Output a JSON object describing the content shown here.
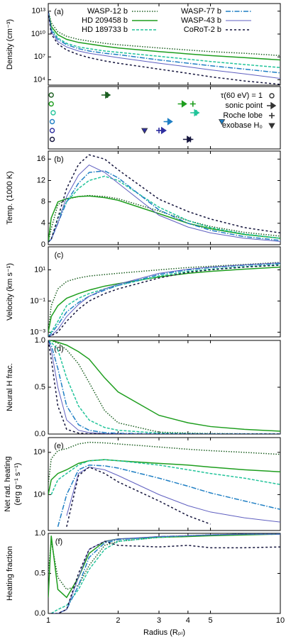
{
  "chart_data": [
    {
      "type": "line",
      "panel_label": "(a)",
      "y_label": "Density (cm⁻³)",
      "ylog": true,
      "xlim": [
        1,
        10
      ],
      "xticks": [
        1,
        2,
        3,
        4,
        5,
        10
      ],
      "ylim": [
        2000,
        100000000000000
      ],
      "yticks": [
        {
          "value": 10000,
          "label": "10⁴"
        },
        {
          "value": 10000000,
          "label": "10⁷"
        },
        {
          "value": 10000000000,
          "label": "10¹⁰"
        },
        {
          "value": 10000000000000,
          "label": "10¹³"
        }
      ],
      "x": [
        1,
        1.03,
        1.1,
        1.2,
        1.35,
        1.5,
        1.75,
        2,
        3,
        4,
        5,
        7,
        10
      ],
      "series": [
        {
          "name": "WASP-12 b",
          "color": "#1b5e20",
          "dash": "1.5,2",
          "values": [
            10000000000000,
            300000000000,
            20000000000,
            5000000000,
            2000000000,
            1200000000,
            600000000,
            400000000,
            150000000,
            80000000,
            50000000,
            30000000,
            15000000
          ]
        },
        {
          "name": "HD 209458 b",
          "color": "#1e9e1e",
          "dash": "",
          "values": [
            10000000000000,
            100000000000,
            8000000000,
            2000000000,
            800000000,
            500000000,
            250000000,
            150000000,
            50000000,
            25000000,
            15000000,
            8000000,
            4000000
          ]
        },
        {
          "name": "HD 189733 b",
          "color": "#22c49a",
          "dash": "4,2",
          "values": [
            10000000000000,
            50000000000,
            3000000000,
            600000000,
            200000000,
            120000000,
            60000000,
            40000000,
            12000000,
            5000000,
            2500000,
            1000000,
            400000
          ]
        },
        {
          "name": "WASP-77 b",
          "color": "#1f7fc4",
          "dash": "7,2,1.5,2",
          "values": [
            10000000000000,
            30000000000,
            2000000000,
            400000000,
            120000000,
            60000000,
            30000000,
            20000000,
            4000000,
            1500000,
            700000,
            250000,
            80000
          ]
        },
        {
          "name": "WASP-43 b",
          "color": "#5f5fc0",
          "dash": "",
          "values": [
            10000000000000,
            20000000000,
            1000000000,
            200000000,
            60000000,
            30000000,
            15000000,
            8000000,
            1500000,
            500000,
            200000,
            60000,
            15000
          ]
        },
        {
          "name": "CoRoT-2 b",
          "color": "#14143c",
          "dash": "3,3",
          "values": [
            10000000000000,
            10000000000,
            500000000,
            80000000,
            20000000,
            8000000,
            3000000,
            1500000,
            250000,
            70000,
            25000,
            7000,
            2500
          ]
        }
      ]
    },
    {
      "type": "marker",
      "xlim": [
        1,
        10
      ],
      "xticks": [
        1,
        2,
        3,
        4,
        5,
        10
      ],
      "legend_labels": [
        "τ(60 eV) = 1",
        "sonic point",
        "Roche lobe",
        "exobase H₀"
      ],
      "series": [
        {
          "color": "#1b5e20",
          "x": [
            1.03,
            1.78,
            1.8,
            null
          ]
        },
        {
          "color": "#1e9e1e",
          "x": [
            1.03,
            3.8,
            4.2,
            null
          ]
        },
        {
          "color": "#22c49a",
          "x": [
            1.05,
            4.3,
            4.35,
            null
          ]
        },
        {
          "color": "#1f7fc4",
          "x": [
            1.04,
            3.3,
            3.3,
            5.6
          ]
        },
        {
          "color": "#3030a0",
          "x": [
            1.04,
            3.1,
            3.0,
            2.6
          ]
        },
        {
          "color": "#14143c",
          "x": [
            1.04,
            4.0,
            4.1,
            null
          ]
        }
      ]
    },
    {
      "type": "line",
      "panel_label": "(b)",
      "y_label": "Temp. (1000 K)",
      "ylog": false,
      "xlim": [
        1,
        10
      ],
      "xticks": [
        1,
        2,
        3,
        4,
        5,
        10
      ],
      "ylim": [
        0,
        17.5
      ],
      "yticks": [
        0,
        4,
        8,
        12,
        16
      ],
      "x": [
        1,
        1.03,
        1.1,
        1.2,
        1.35,
        1.5,
        1.75,
        2,
        3,
        4,
        5,
        7,
        10
      ],
      "series": [
        {
          "color": "#1b5e20",
          "dash": "1.5,2",
          "values": [
            0.5,
            3,
            7.5,
            8.5,
            9.0,
            9.2,
            9.0,
            8.6,
            6.3,
            4.5,
            3.4,
            2.3,
            1.6
          ]
        },
        {
          "color": "#1e9e1e",
          "dash": "",
          "values": [
            0.5,
            5,
            8.0,
            8.6,
            9.0,
            9.1,
            8.8,
            8.3,
            5.8,
            4.0,
            3.0,
            1.9,
            1.2
          ]
        },
        {
          "color": "#22c49a",
          "dash": "4,2",
          "values": [
            0.5,
            1,
            5,
            8,
            10.5,
            12,
            12.8,
            12,
            7,
            4.5,
            3.2,
            2,
            1.2
          ]
        },
        {
          "color": "#1f7fc4",
          "dash": "7,2,1.5,2",
          "values": [
            0.5,
            1,
            4,
            8,
            11.5,
            13.5,
            13.8,
            12.5,
            6.5,
            4,
            2.7,
            1.5,
            0.8
          ]
        },
        {
          "color": "#5f5fc0",
          "dash": "",
          "values": [
            0.5,
            1,
            4,
            9,
            13,
            14.9,
            13.5,
            11.5,
            5.5,
            3.3,
            2.2,
            1.2,
            0.6
          ]
        },
        {
          "color": "#14143c",
          "dash": "3,3",
          "values": [
            0.5,
            1,
            5,
            10.5,
            15,
            16.8,
            16,
            14,
            8.5,
            6.2,
            4.8,
            3.2,
            2.2
          ]
        }
      ]
    },
    {
      "type": "line",
      "panel_label": "(c)",
      "y_label": "Velocity (km s⁻¹)",
      "ylog": true,
      "xlim": [
        1,
        10
      ],
      "xticks": [
        1,
        2,
        3,
        4,
        5,
        10
      ],
      "ylim": [
        0.0005,
        300
      ],
      "yticks": [
        {
          "value": 0.001,
          "label": "10⁻³"
        },
        {
          "value": 0.1,
          "label": "10⁻¹"
        },
        {
          "value": 10,
          "label": "10¹"
        }
      ],
      "x": [
        1,
        1.03,
        1.1,
        1.2,
        1.35,
        1.5,
        1.75,
        2,
        3,
        4,
        5,
        7,
        10
      ],
      "series": [
        {
          "color": "#1b5e20",
          "dash": "1.5,2",
          "values": [
            0.001,
            0.05,
            0.6,
            1.8,
            3,
            4,
            5,
            6,
            10,
            14,
            17,
            22,
            30
          ]
        },
        {
          "color": "#1e9e1e",
          "dash": "",
          "values": [
            0.001,
            0.01,
            0.05,
            0.15,
            0.3,
            0.5,
            0.9,
            1.3,
            3.5,
            6,
            8,
            11,
            15
          ]
        },
        {
          "color": "#22c49a",
          "dash": "4,2",
          "values": [
            0.0005,
            0.001,
            0.005,
            0.05,
            0.15,
            0.3,
            0.6,
            1,
            4,
            8,
            11,
            16,
            22
          ]
        },
        {
          "color": "#1f7fc4",
          "dash": "7,2,1.5,2",
          "values": [
            0.0005,
            0.0008,
            0.003,
            0.02,
            0.08,
            0.2,
            0.5,
            1,
            5,
            10,
            14,
            20,
            26
          ]
        },
        {
          "color": "#5f5fc0",
          "dash": "",
          "values": [
            0.0005,
            0.0006,
            0.0015,
            0.01,
            0.06,
            0.2,
            0.6,
            1.2,
            6,
            11,
            15,
            21,
            28
          ]
        },
        {
          "color": "#14143c",
          "dash": "3,3",
          "values": [
            0.0005,
            0.0006,
            0.001,
            0.005,
            0.03,
            0.1,
            0.3,
            0.6,
            3,
            7,
            10,
            15,
            20
          ]
        }
      ]
    },
    {
      "type": "line",
      "panel_label": "(d)",
      "y_label": "Neural H frac.",
      "ylog": false,
      "xlim": [
        1,
        10
      ],
      "xticks": [
        1,
        2,
        3,
        4,
        5,
        10
      ],
      "ylim": [
        0,
        1
      ],
      "yticks": [
        {
          "value": 0,
          "label": "0.0"
        },
        0.5,
        {
          "value": 1,
          "label": "1.0"
        }
      ],
      "x": [
        1,
        1.03,
        1.1,
        1.2,
        1.35,
        1.5,
        1.75,
        2,
        3,
        4,
        5,
        7,
        10
      ],
      "series": [
        {
          "color": "#1b5e20",
          "dash": "1.5,2",
          "values": [
            1,
            1,
            0.97,
            0.9,
            0.75,
            0.55,
            0.25,
            0.12,
            0.02,
            0.01,
            0.005,
            0.003,
            0.002
          ]
        },
        {
          "color": "#1e9e1e",
          "dash": "",
          "values": [
            1,
            1,
            0.98,
            0.95,
            0.88,
            0.8,
            0.6,
            0.45,
            0.2,
            0.12,
            0.08,
            0.05,
            0.03
          ]
        },
        {
          "color": "#22c49a",
          "dash": "4,2",
          "values": [
            1,
            0.98,
            0.9,
            0.6,
            0.3,
            0.15,
            0.07,
            0.04,
            0.01,
            0.005,
            0.003,
            0.002,
            0.001
          ]
        },
        {
          "color": "#1f7fc4",
          "dash": "7,2,1.5,2",
          "values": [
            1,
            0.95,
            0.7,
            0.3,
            0.1,
            0.04,
            0.015,
            0.008,
            0.002,
            0.001,
            0,
            0,
            0
          ]
        },
        {
          "color": "#5f5fc0",
          "dash": "",
          "values": [
            1,
            0.9,
            0.5,
            0.15,
            0.04,
            0.015,
            0.005,
            0.002,
            0,
            0,
            0,
            0,
            0
          ]
        },
        {
          "color": "#14143c",
          "dash": "3,3",
          "values": [
            1,
            0.8,
            0.3,
            0.05,
            0.01,
            0.003,
            0.001,
            0,
            0,
            0,
            0,
            0,
            0
          ]
        }
      ]
    },
    {
      "type": "line",
      "panel_label": "(e)",
      "y_label": [
        "Net rad. heating",
        "(erg g⁻¹ s⁻¹)"
      ],
      "ylog": true,
      "xlim": [
        1,
        10
      ],
      "xticks": [
        1,
        2,
        3,
        4,
        5,
        10
      ],
      "ylim": [
        20000,
        500000000
      ],
      "yticks": [
        {
          "value": 1000000,
          "label": "10⁶"
        },
        {
          "value": 100000000,
          "label": "10⁸"
        }
      ],
      "x": [
        1,
        1.03,
        1.1,
        1.2,
        1.35,
        1.5,
        1.75,
        2,
        3,
        4,
        5,
        7,
        10
      ],
      "series": [
        {
          "color": "#1b5e20",
          "dash": "1.5,2",
          "values": [
            3000000,
            50000000,
            120000000,
            150000000,
            250000000,
            300000000,
            280000000,
            250000000,
            180000000,
            140000000,
            120000000,
            100000000,
            80000000
          ]
        },
        {
          "color": "#1e9e1e",
          "dash": "",
          "values": [
            1000000,
            5000000,
            10000000,
            15000000,
            30000000,
            40000000,
            45000000,
            40000000,
            30000000,
            25000000,
            20000000,
            15000000,
            12000000
          ]
        },
        {
          "color": "#22c49a",
          "dash": "4,2",
          "values": [
            null,
            1000000,
            5000000,
            10000000,
            25000000,
            40000000,
            45000000,
            40000000,
            25000000,
            15000000,
            10000000,
            6000000,
            3000000
          ]
        },
        {
          "color": "#1f7fc4",
          "dash": "7,2,1.5,2",
          "values": [
            null,
            null,
            30000,
            1000000,
            15000000,
            25000000,
            23000000,
            18000000,
            6000000,
            2500000,
            1200000,
            500000,
            200000
          ]
        },
        {
          "color": "#5f5fc0",
          "dash": "",
          "values": [
            null,
            null,
            null,
            100000,
            10000000,
            20000000,
            15000000,
            8000000,
            1000000,
            300000,
            150000,
            80000,
            50000
          ]
        },
        {
          "color": "#14143c",
          "dash": "3,3",
          "values": [
            null,
            null,
            null,
            30000,
            8000000,
            20000000,
            10000000,
            4000000,
            500000,
            100000,
            40000,
            null,
            null
          ]
        }
      ]
    },
    {
      "type": "line",
      "panel_label": "(f)",
      "y_label": "Heating fraction",
      "x_label": "Radius (Rₚₗ)",
      "ylog": false,
      "xlim": [
        1,
        10
      ],
      "xticks": [
        1,
        2,
        3,
        4,
        5,
        10
      ],
      "ylim": [
        0,
        1
      ],
      "yticks": [
        {
          "value": 0,
          "label": "0.0"
        },
        0.5,
        {
          "value": 1,
          "label": "1.0"
        }
      ],
      "x": [
        1,
        1.03,
        1.1,
        1.2,
        1.35,
        1.5,
        1.75,
        2,
        3,
        4,
        5,
        7,
        10
      ],
      "series": [
        {
          "color": "#1b5e20",
          "dash": "1.5,2",
          "values": [
            0.5,
            0.9,
            0.45,
            0.3,
            0.35,
            0.6,
            0.85,
            0.9,
            0.95,
            0.97,
            0.98,
            0.99,
            0.99
          ]
        },
        {
          "color": "#1e9e1e",
          "dash": "",
          "values": [
            0.2,
            0.97,
            0.3,
            0.2,
            0.45,
            0.75,
            0.9,
            0.93,
            0.95,
            0.96,
            0.97,
            0.98,
            0.99
          ]
        },
        {
          "color": "#22c49a",
          "dash": "4,2",
          "values": [
            null,
            0,
            0.05,
            0.1,
            0.3,
            0.55,
            0.8,
            0.9,
            0.95,
            0.97,
            0.98,
            0.99,
            0.99
          ]
        },
        {
          "color": "#1f7fc4",
          "dash": "7,2,1.5,2",
          "values": [
            null,
            0,
            0,
            0.05,
            0.35,
            0.7,
            0.88,
            0.92,
            0.96,
            0.97,
            0.98,
            0.99,
            0.99
          ]
        },
        {
          "color": "#5f5fc0",
          "dash": "",
          "values": [
            null,
            0,
            0,
            0.05,
            0.45,
            0.8,
            0.9,
            0.93,
            0.96,
            0.97,
            0.98,
            0.99,
            0.99
          ]
        },
        {
          "color": "#14143c",
          "dash": "3,3",
          "values": [
            null,
            0,
            0,
            0.05,
            0.5,
            0.8,
            0.9,
            0.85,
            0.83,
            0.85,
            0.82,
            0.82,
            0.83
          ]
        }
      ]
    }
  ]
}
